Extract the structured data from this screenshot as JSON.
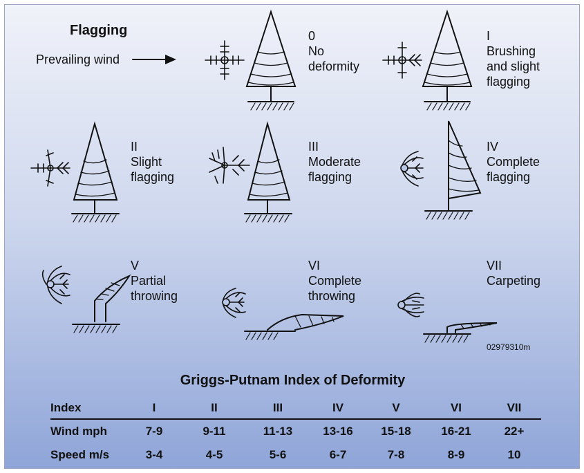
{
  "diagram": {
    "title": "Flagging",
    "wind_label": "Prevailing wind",
    "figure_code": "02979310m",
    "stages": [
      {
        "index": "0",
        "desc": "No\ndeformity"
      },
      {
        "index": "I",
        "desc": "Brushing\nand slight\nflagging"
      },
      {
        "index": "II",
        "desc": "Slight\nflagging"
      },
      {
        "index": "III",
        "desc": "Moderate\nflagging"
      },
      {
        "index": "IV",
        "desc": "Complete\nflagging"
      },
      {
        "index": "V",
        "desc": "Partial\nthrowing"
      },
      {
        "index": "VI",
        "desc": "Complete\nthrowing"
      },
      {
        "index": "VII",
        "desc": "Carpeting"
      }
    ]
  },
  "table": {
    "title": "Griggs-Putnam Index of Deformity",
    "header": [
      "Index",
      "I",
      "II",
      "III",
      "IV",
      "V",
      "VI",
      "VII"
    ],
    "rows": [
      [
        "Wind mph",
        "7-9",
        "9-11",
        "11-13",
        "13-16",
        "15-18",
        "16-21",
        "22+"
      ],
      [
        "Speed m/s",
        "3-4",
        "4-5",
        "5-6",
        "6-7",
        "7-8",
        "8-9",
        "10"
      ]
    ]
  }
}
